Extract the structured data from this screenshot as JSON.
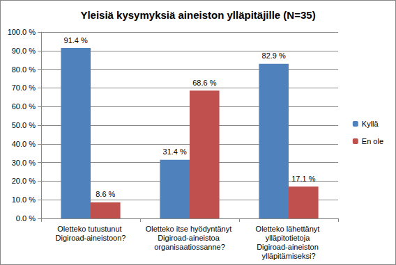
{
  "chart_data": {
    "type": "bar",
    "title": "Yleisiä kysymyksiä aineiston ylläpitäjille (N=35)",
    "categories": [
      "Oletteko tutustunut Digiroad-aineistoon?",
      "Oletteko itse hyödyntänyt Digiroad-aineistoa organisaatiossanne?",
      "Oletteko lähettänyt ylläpitotietoja Digiroad-aineiston ylläpitämiseksi?"
    ],
    "series": [
      {
        "name": "Kyllä",
        "color": "#4f81bd",
        "values": [
          91.4,
          31.4,
          82.9
        ],
        "value_labels": [
          "91.4 %",
          "31.4 %",
          "82.9 %"
        ]
      },
      {
        "name": "En ole",
        "color": "#c0504d",
        "values": [
          8.6,
          68.6,
          17.1
        ],
        "value_labels": [
          "8.6 %",
          "68.6 %",
          "17.1 %"
        ]
      }
    ],
    "ylim": [
      0,
      100
    ],
    "yticks": [
      {
        "value": 0,
        "label": "0.0 %"
      },
      {
        "value": 10,
        "label": "10.0 %"
      },
      {
        "value": 20,
        "label": "20.0 %"
      },
      {
        "value": 30,
        "label": "30.0 %"
      },
      {
        "value": 40,
        "label": "40.0 %"
      },
      {
        "value": 50,
        "label": "50.0 %"
      },
      {
        "value": 60,
        "label": "60.0 %"
      },
      {
        "value": 70,
        "label": "70.0 %"
      },
      {
        "value": 80,
        "label": "80.0 %"
      },
      {
        "value": 90,
        "label": "90.0 %"
      },
      {
        "value": 100,
        "label": "100.0 %"
      }
    ],
    "grid": true,
    "legend": "right",
    "data_labels": true
  }
}
